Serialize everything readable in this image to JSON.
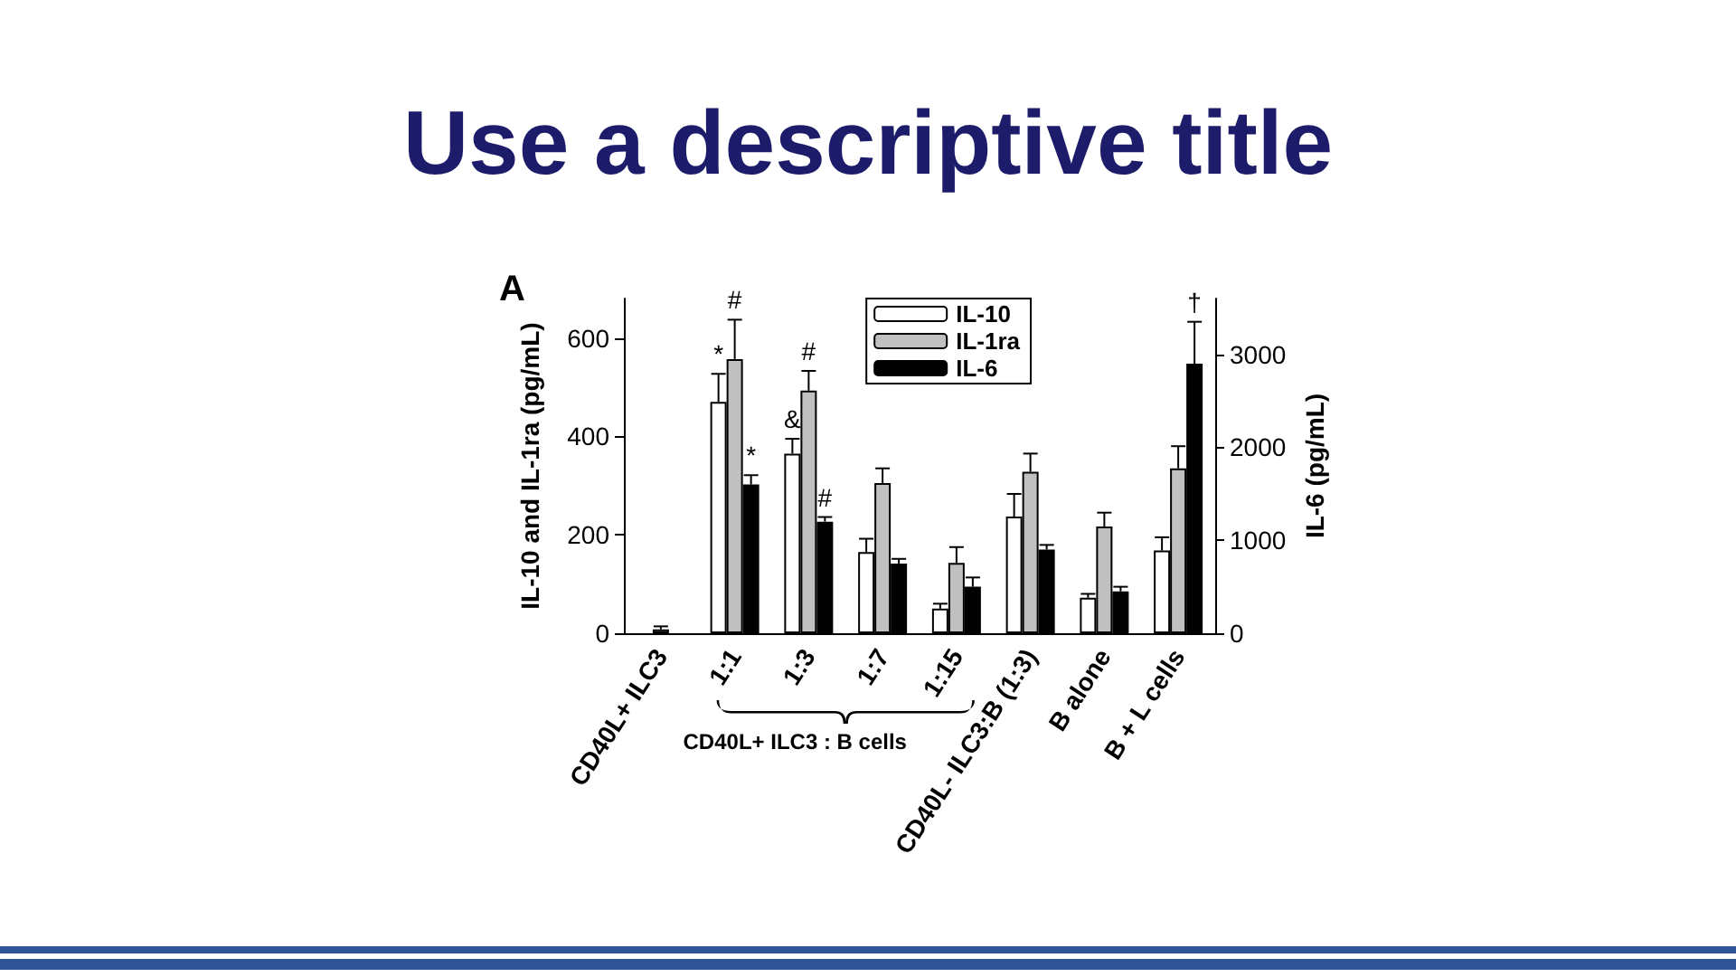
{
  "chart_data": {
    "type": "bar",
    "title": "Use a descriptive title",
    "categories": [
      "CD40L+ ILC3",
      "1:1",
      "1:3",
      "1:7",
      "1:15",
      "CD40L- ILC3:B (1:3)",
      "B alone",
      "B + L cells"
    ],
    "series": [
      {
        "name": "IL-10",
        "color": "#ffffff",
        "values": [
          null,
          470,
          365,
          165,
          50,
          237,
          72,
          168
        ],
        "errors": [
          null,
          [
            470,
            527
          ],
          [
            365,
            395
          ],
          [
            165,
            192
          ],
          [
            50,
            60
          ],
          [
            237,
            283
          ],
          [
            72,
            80
          ],
          [
            168,
            195
          ]
        ],
        "value_labels": [
          null,
          "*",
          "&",
          null,
          null,
          null,
          null,
          null
        ]
      },
      {
        "name": "IL-1ra",
        "color": "#c0c0c0",
        "values": [
          8,
          557,
          493,
          305,
          143,
          328,
          217,
          335
        ],
        "errors": [
          [
            8,
            14
          ],
          [
            557,
            637
          ],
          [
            493,
            533
          ],
          [
            305,
            335
          ],
          [
            143,
            175
          ],
          [
            328,
            365
          ],
          [
            217,
            245
          ],
          [
            335,
            380
          ]
        ],
        "value_labels": [
          null,
          "#",
          "#",
          null,
          null,
          null,
          null,
          null
        ]
      },
      {
        "name": "IL-6",
        "color": "#000000",
        "axis": "y2",
        "values": [
          null,
          1600,
          1200,
          750,
          500,
          900,
          450,
          2900
        ],
        "errors": [
          null,
          [
            1600,
            1700
          ],
          [
            1200,
            1250
          ],
          [
            750,
            800
          ],
          [
            500,
            600
          ],
          [
            900,
            950
          ],
          [
            450,
            500
          ],
          [
            2900,
            3350
          ]
        ],
        "value_labels": [
          null,
          "*",
          "#",
          null,
          null,
          null,
          null,
          "†"
        ]
      }
    ],
    "ylabel": "IL-10 and IL-1ra (pg/mL)",
    "y2label": "IL-6 (pg/mL)",
    "ylim": [
      0,
      680
    ],
    "yticks": [
      0,
      200,
      400,
      600
    ],
    "y2lim": [
      0,
      3600
    ],
    "y2ticks": [
      0,
      1000,
      2000,
      3000
    ],
    "annotations": [
      "A",
      "CD40L+ ILC3 : B cells"
    ],
    "legend": "top right",
    "grid": false
  }
}
